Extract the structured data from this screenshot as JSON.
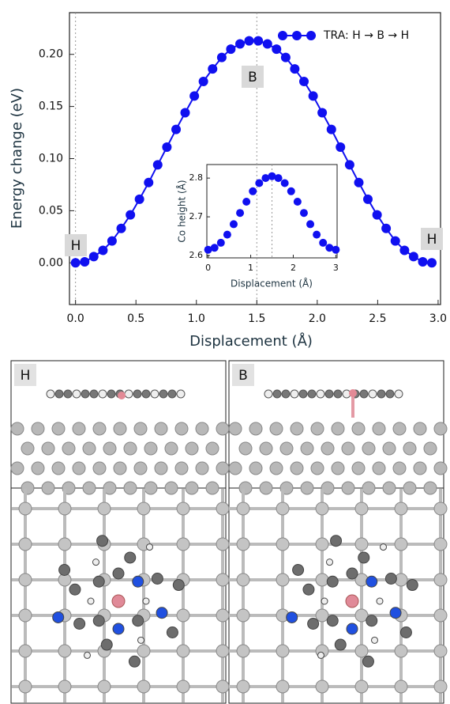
{
  "chart_data": [
    {
      "type": "line",
      "x_label": "Displacement (Å)",
      "y_label": "Energy change (eV)",
      "xlim": [
        -0.05,
        3.02
      ],
      "ylim": [
        -0.04,
        0.24
      ],
      "xticks": [
        {
          "value": 0,
          "label": "0.0"
        },
        0.5,
        {
          "value": 1,
          "label": "1.0"
        },
        1.5,
        {
          "value": 2,
          "label": "2.0"
        },
        2.5,
        {
          "value": 3,
          "label": "3.0"
        }
      ],
      "yticks": [
        {
          "value": 0,
          "label": "0.00"
        },
        0.05,
        {
          "value": 0.1,
          "label": "0.10"
        },
        0.15,
        {
          "value": 0.2,
          "label": "0.20"
        }
      ],
      "vlines": [
        0,
        1.5
      ],
      "annotations": [
        "H",
        "B",
        "H"
      ],
      "legend": "upper right",
      "x": [
        0,
        0.076,
        0.151,
        0.227,
        0.302,
        0.378,
        0.454,
        0.529,
        0.605,
        0.68,
        0.756,
        0.832,
        0.907,
        0.983,
        1.058,
        1.134,
        1.21,
        1.285,
        1.361,
        1.436,
        1.512,
        1.588,
        1.663,
        1.739,
        1.814,
        1.89,
        1.966,
        2.041,
        2.117,
        2.192,
        2.268,
        2.344,
        2.419,
        2.495,
        2.57,
        2.646,
        2.722,
        2.797,
        2.873,
        2.948
      ],
      "series": [
        {
          "name": "TRA: H → B → H",
          "color": "#1010f0",
          "values": [
            0,
            0.001,
            0.006,
            0.012,
            0.021,
            0.033,
            0.046,
            0.061,
            0.077,
            0.094,
            0.111,
            0.128,
            0.144,
            0.16,
            0.174,
            0.186,
            0.197,
            0.205,
            0.21,
            0.213,
            0.213,
            0.21,
            0.205,
            0.197,
            0.186,
            0.174,
            0.16,
            0.144,
            0.128,
            0.111,
            0.094,
            0.077,
            0.061,
            0.046,
            0.033,
            0.021,
            0.012,
            0.006,
            0.001,
            0
          ]
        }
      ]
    },
    {
      "type": "scatter",
      "x_label": "Displacement (Å)",
      "y_label": "Co height (Å)",
      "xlim": [
        -0.03,
        3.03
      ],
      "ylim": [
        2.594,
        2.835
      ],
      "xticks": [
        0,
        1,
        2,
        3
      ],
      "yticks": [
        2.6,
        2.7,
        2.8
      ],
      "vlines": [
        1.5
      ],
      "x": [
        0,
        0.15,
        0.3,
        0.45,
        0.6,
        0.75,
        0.9,
        1.05,
        1.2,
        1.35,
        1.5,
        1.65,
        1.8,
        1.95,
        2.1,
        2.25,
        2.4,
        2.55,
        2.7,
        2.85,
        3
      ],
      "series": [
        {
          "color": "#1010f0",
          "values": [
            2.615,
            2.62,
            2.633,
            2.654,
            2.681,
            2.71,
            2.739,
            2.766,
            2.787,
            2.8,
            2.805,
            2.8,
            2.787,
            2.766,
            2.739,
            2.71,
            2.681,
            2.654,
            2.633,
            2.62,
            2.615
          ]
        }
      ]
    }
  ],
  "panels": [
    "H",
    "B"
  ]
}
